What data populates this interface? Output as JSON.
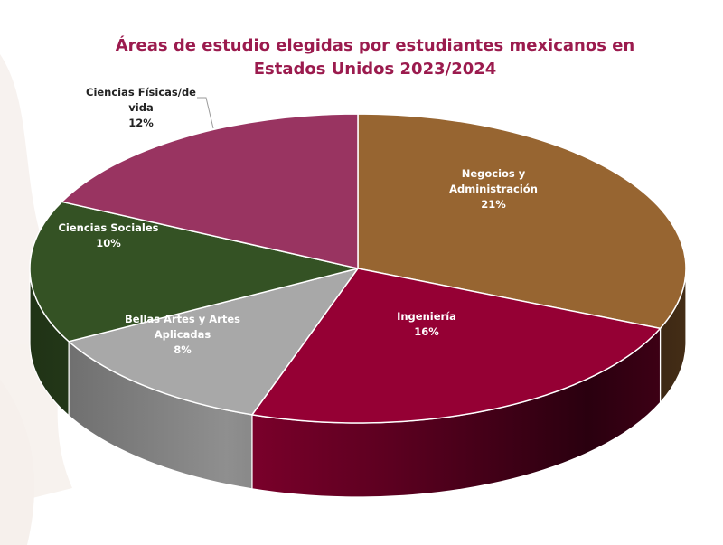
{
  "chart_data": {
    "type": "pie",
    "title_lines": [
      "Áreas de estudio elegidas por estudiantes mexicanos en",
      "Estados Unidos  2023/2024"
    ],
    "slices": [
      {
        "label_lines": [
          "Negocios y",
          "Administración"
        ],
        "percent_label": "21%",
        "value": 21,
        "color": "#976531"
      },
      {
        "label_lines": [
          "Ingeniería"
        ],
        "percent_label": "16%",
        "value": 16,
        "color": "#950034"
      },
      {
        "label_lines": [
          "Bellas Artes y Artes",
          "Aplicadas"
        ],
        "percent_label": "8%",
        "value": 8,
        "color": "#a8a8a8"
      },
      {
        "label_lines": [
          "Ciencias Sociales"
        ],
        "percent_label": "10%",
        "value": 10,
        "color": "#345224"
      },
      {
        "label_lines": [
          "Ciencias Físicas/de",
          "vida"
        ],
        "percent_label": "12%",
        "value": 12,
        "color": "#993461"
      }
    ],
    "label_colors": [
      "#ffffff",
      "#ffffff",
      "#ffffff",
      "#ffffff",
      "#222222"
    ]
  }
}
